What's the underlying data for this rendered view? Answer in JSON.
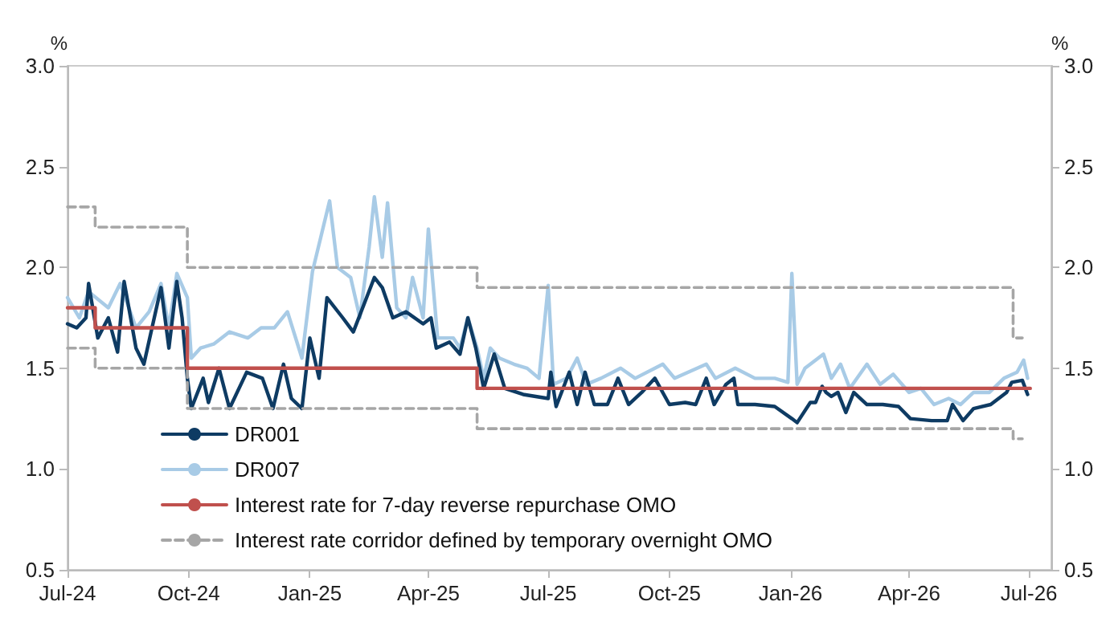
{
  "chart_data": {
    "type": "line",
    "ylabel": "%",
    "y2label": "%",
    "xlim": [
      "2024-07-01",
      "2026-07-18"
    ],
    "xticks": [
      {
        "value": "2024-07-01",
        "label": "Jul-24"
      },
      {
        "value": "2024-10-01",
        "label": "Oct-24"
      },
      {
        "value": "2025-01-01",
        "label": "Jan-25"
      },
      {
        "value": "2025-04-01",
        "label": "Apr-25"
      },
      {
        "value": "2025-07-01",
        "label": "Jul-25"
      },
      {
        "value": "2025-10-01",
        "label": "Oct-25"
      },
      {
        "value": "2026-01-01",
        "label": "Jan-26"
      },
      {
        "value": "2026-04-01",
        "label": "Apr-26"
      },
      {
        "value": "2026-07-01",
        "label": "Jul-26"
      }
    ],
    "ylim": [
      0.5,
      3.0
    ],
    "yticks": [
      {
        "value": 0.5,
        "label": "0.5"
      },
      {
        "value": 1.0,
        "label": "1.0"
      },
      {
        "value": 1.5,
        "label": "1.5"
      },
      {
        "value": 2.0,
        "label": "2.0"
      },
      {
        "value": 2.5,
        "label": "2.5"
      },
      {
        "value": 3.0,
        "label": "3.0"
      }
    ],
    "y2lim": [
      0.5,
      3.0
    ],
    "y2ticks": [
      {
        "value": 0.5,
        "label": "0.5"
      },
      {
        "value": 1.0,
        "label": "1.0"
      },
      {
        "value": 1.5,
        "label": "1.5"
      },
      {
        "value": 2.0,
        "label": "2.0"
      },
      {
        "value": 2.5,
        "label": "2.5"
      },
      {
        "value": 3.0,
        "label": "3.0"
      }
    ],
    "grid": false,
    "legend": "bottom left",
    "marker": "none",
    "series": [
      {
        "name": "DR001",
        "color": "#0e3b63",
        "line_style": "solid",
        "x": [
          "2024-07-01",
          "2024-07-08",
          "2024-07-15",
          "2024-07-17",
          "2024-07-24",
          "2024-08-01",
          "2024-08-08",
          "2024-08-13",
          "2024-08-22",
          "2024-08-28",
          "2024-09-10",
          "2024-09-16",
          "2024-09-22",
          "2024-09-26",
          "2024-09-30",
          "2024-10-03",
          "2024-10-12",
          "2024-10-16",
          "2024-10-24",
          "2024-11-01",
          "2024-11-14",
          "2024-11-26",
          "2024-12-04",
          "2024-12-12",
          "2024-12-18",
          "2024-12-26",
          "2025-01-01",
          "2025-01-08",
          "2025-01-14",
          "2025-01-26",
          "2025-02-03",
          "2025-02-19",
          "2025-02-25",
          "2025-03-05",
          "2025-03-15",
          "2025-03-28",
          "2025-04-03",
          "2025-04-07",
          "2025-04-17",
          "2025-04-25",
          "2025-05-01",
          "2025-05-07",
          "2025-05-13",
          "2025-05-21",
          "2025-05-29",
          "2025-06-12",
          "2025-07-01",
          "2025-07-03",
          "2025-07-07",
          "2025-07-17",
          "2025-07-23",
          "2025-07-29",
          "2025-08-05",
          "2025-08-15",
          "2025-08-23",
          "2025-08-31",
          "2025-09-10",
          "2025-09-20",
          "2025-10-01",
          "2025-10-13",
          "2025-10-21",
          "2025-10-29",
          "2025-11-04",
          "2025-11-13",
          "2025-11-19",
          "2025-11-22",
          "2025-12-05",
          "2025-12-20",
          "2026-01-02",
          "2026-01-06",
          "2026-01-16",
          "2026-01-20",
          "2026-01-25",
          "2026-01-28",
          "2026-02-01",
          "2026-02-06",
          "2026-02-12",
          "2026-02-18",
          "2026-02-28",
          "2026-03-12",
          "2026-03-24",
          "2026-04-02",
          "2026-04-18",
          "2026-04-30",
          "2026-05-04",
          "2026-05-12",
          "2026-05-20",
          "2026-06-02",
          "2026-06-14",
          "2026-06-18",
          "2026-06-26",
          "2026-06-30"
        ],
        "values": [
          1.72,
          1.7,
          1.75,
          1.92,
          1.65,
          1.75,
          1.58,
          1.93,
          1.6,
          1.52,
          1.9,
          1.6,
          1.93,
          1.75,
          1.45,
          1.3,
          1.45,
          1.33,
          1.5,
          1.3,
          1.48,
          1.45,
          1.3,
          1.52,
          1.35,
          1.3,
          1.65,
          1.45,
          1.85,
          1.75,
          1.68,
          1.95,
          1.9,
          1.75,
          1.78,
          1.72,
          1.75,
          1.6,
          1.63,
          1.57,
          1.75,
          1.6,
          1.4,
          1.57,
          1.4,
          1.37,
          1.35,
          1.48,
          1.31,
          1.48,
          1.32,
          1.48,
          1.32,
          1.32,
          1.45,
          1.32,
          1.38,
          1.45,
          1.32,
          1.33,
          1.32,
          1.45,
          1.32,
          1.42,
          1.45,
          1.32,
          1.32,
          1.31,
          1.25,
          1.23,
          1.33,
          1.33,
          1.41,
          1.38,
          1.36,
          1.38,
          1.28,
          1.38,
          1.32,
          1.32,
          1.31,
          1.25,
          1.24,
          1.24,
          1.32,
          1.24,
          1.3,
          1.32,
          1.38,
          1.43,
          1.44,
          1.37
        ]
      },
      {
        "name": "DR007",
        "color": "#a8cbe6",
        "line_style": "solid",
        "x": [
          "2024-07-01",
          "2024-07-10",
          "2024-07-17",
          "2024-08-01",
          "2024-08-10",
          "2024-08-22",
          "2024-09-01",
          "2024-09-10",
          "2024-09-16",
          "2024-09-22",
          "2024-09-30",
          "2024-10-03",
          "2024-10-10",
          "2024-10-20",
          "2024-11-01",
          "2024-11-15",
          "2024-11-25",
          "2024-12-05",
          "2024-12-15",
          "2024-12-26",
          "2025-01-03",
          "2025-01-16",
          "2025-01-22",
          "2025-02-01",
          "2025-02-08",
          "2025-02-15",
          "2025-02-19",
          "2025-02-25",
          "2025-03-01",
          "2025-03-08",
          "2025-03-15",
          "2025-03-20",
          "2025-03-28",
          "2025-04-01",
          "2025-04-08",
          "2025-04-20",
          "2025-04-25",
          "2025-05-01",
          "2025-05-08",
          "2025-05-13",
          "2025-05-18",
          "2025-05-25",
          "2025-06-05",
          "2025-06-15",
          "2025-06-24",
          "2025-07-01",
          "2025-07-05",
          "2025-07-15",
          "2025-07-23",
          "2025-07-30",
          "2025-08-10",
          "2025-08-25",
          "2025-09-05",
          "2025-09-26",
          "2025-10-05",
          "2025-10-29",
          "2025-11-05",
          "2025-11-20",
          "2025-12-05",
          "2025-12-20",
          "2025-12-30",
          "2026-01-02",
          "2026-01-06",
          "2026-01-12",
          "2026-01-26",
          "2026-02-01",
          "2026-02-08",
          "2026-02-15",
          "2026-02-28",
          "2026-03-10",
          "2026-03-20",
          "2026-04-01",
          "2026-04-10",
          "2026-04-20",
          "2026-05-01",
          "2026-05-10",
          "2026-05-20",
          "2026-06-01",
          "2026-06-12",
          "2026-06-22",
          "2026-06-27",
          "2026-06-30"
        ],
        "values": [
          1.85,
          1.75,
          1.88,
          1.8,
          1.92,
          1.7,
          1.78,
          1.92,
          1.7,
          1.97,
          1.85,
          1.55,
          1.6,
          1.62,
          1.68,
          1.65,
          1.7,
          1.7,
          1.78,
          1.55,
          1.98,
          2.33,
          2.0,
          1.95,
          1.75,
          2.1,
          2.35,
          2.05,
          2.32,
          1.8,
          1.75,
          1.95,
          1.75,
          2.19,
          1.65,
          1.65,
          1.6,
          1.75,
          1.6,
          1.45,
          1.6,
          1.55,
          1.52,
          1.5,
          1.45,
          1.91,
          1.42,
          1.45,
          1.55,
          1.42,
          1.45,
          1.5,
          1.45,
          1.52,
          1.45,
          1.52,
          1.45,
          1.5,
          1.45,
          1.45,
          1.43,
          1.97,
          1.42,
          1.5,
          1.57,
          1.45,
          1.52,
          1.4,
          1.52,
          1.42,
          1.47,
          1.38,
          1.4,
          1.32,
          1.35,
          1.32,
          1.38,
          1.38,
          1.45,
          1.48,
          1.54,
          1.45
        ]
      },
      {
        "name": "Interest rate for 7-day reverse repurchase OMO",
        "type": "step",
        "color": "#c0504d",
        "line_style": "solid",
        "x": [
          "2024-07-01",
          "2024-07-22",
          "2024-09-30",
          "2025-05-08",
          "2026-07-02"
        ],
        "values": [
          1.8,
          1.7,
          1.5,
          1.4,
          1.4
        ]
      },
      {
        "name": "Interest rate corridor defined by temporary overnight OMO",
        "type": "step",
        "color": "#a6a6a6",
        "line_style": "dashed",
        "x": [
          "2024-07-01",
          "2024-07-22",
          "2024-09-30",
          "2025-05-08",
          "2026-06-19",
          "2026-06-26"
        ],
        "values": [
          2.3,
          2.2,
          2.0,
          1.9,
          1.65,
          1.65
        ]
      },
      {
        "type": "step",
        "color": "#a6a6a6",
        "line_style": "dashed",
        "x": [
          "2024-07-01",
          "2024-07-22",
          "2024-09-30",
          "2025-05-08",
          "2026-06-19",
          "2026-06-26"
        ],
        "values": [
          1.6,
          1.5,
          1.3,
          1.2,
          1.15,
          1.15
        ]
      }
    ]
  }
}
